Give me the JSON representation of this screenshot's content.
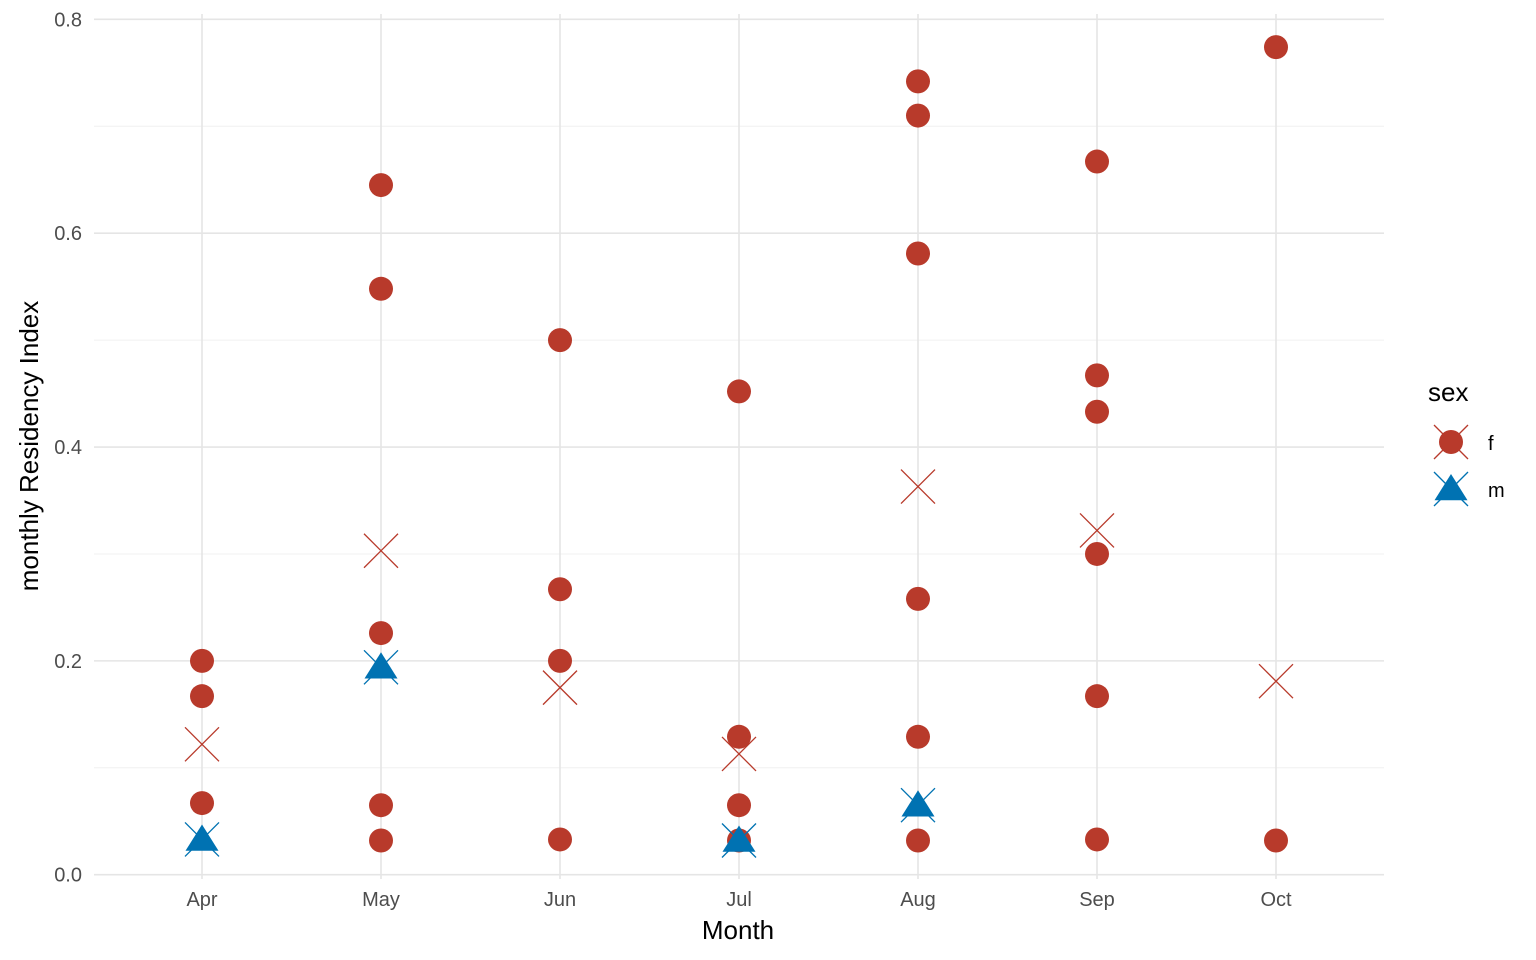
{
  "chart_data": {
    "type": "scatter",
    "xlabel": "Month",
    "ylabel": "monthly Residency Index",
    "categories": [
      "Apr",
      "May",
      "Jun",
      "Jul",
      "Aug",
      "Sep",
      "Oct"
    ],
    "ylim": [
      -0.004,
      0.805
    ],
    "yticks": [
      0.0,
      0.2,
      0.4,
      0.6,
      0.8
    ],
    "ytick_labels": [
      "0.0",
      "0.2",
      "0.4",
      "0.6",
      "0.8"
    ],
    "grid": true,
    "legend": {
      "title": "sex",
      "placement": "right",
      "items": [
        {
          "label": "f",
          "color": "#B83A2B",
          "shape": "circle"
        },
        {
          "label": "m",
          "color": "#0072B2",
          "shape": "triangle"
        }
      ]
    },
    "series": [
      {
        "name": "f",
        "marker": "circle",
        "color": "#B83A2B",
        "points": [
          {
            "x": "Apr",
            "y": 0.2
          },
          {
            "x": "Apr",
            "y": 0.167
          },
          {
            "x": "Apr",
            "y": 0.067
          },
          {
            "x": "May",
            "y": 0.645
          },
          {
            "x": "May",
            "y": 0.548
          },
          {
            "x": "May",
            "y": 0.226
          },
          {
            "x": "May",
            "y": 0.065
          },
          {
            "x": "May",
            "y": 0.032
          },
          {
            "x": "Jun",
            "y": 0.5
          },
          {
            "x": "Jun",
            "y": 0.267
          },
          {
            "x": "Jun",
            "y": 0.2
          },
          {
            "x": "Jun",
            "y": 0.033
          },
          {
            "x": "Jul",
            "y": 0.452
          },
          {
            "x": "Jul",
            "y": 0.129
          },
          {
            "x": "Jul",
            "y": 0.065
          },
          {
            "x": "Jul",
            "y": 0.032
          },
          {
            "x": "Aug",
            "y": 0.742
          },
          {
            "x": "Aug",
            "y": 0.71
          },
          {
            "x": "Aug",
            "y": 0.581
          },
          {
            "x": "Aug",
            "y": 0.258
          },
          {
            "x": "Aug",
            "y": 0.129
          },
          {
            "x": "Aug",
            "y": 0.032
          },
          {
            "x": "Sep",
            "y": 0.667
          },
          {
            "x": "Sep",
            "y": 0.467
          },
          {
            "x": "Sep",
            "y": 0.433
          },
          {
            "x": "Sep",
            "y": 0.3
          },
          {
            "x": "Sep",
            "y": 0.167
          },
          {
            "x": "Sep",
            "y": 0.033
          },
          {
            "x": "Oct",
            "y": 0.774
          },
          {
            "x": "Oct",
            "y": 0.032
          }
        ]
      },
      {
        "name": "m",
        "marker": "triangle",
        "color": "#0072B2",
        "points": [
          {
            "x": "Apr",
            "y": 0.033
          },
          {
            "x": "May",
            "y": 0.194
          },
          {
            "x": "Jul",
            "y": 0.032
          },
          {
            "x": "Aug",
            "y": 0.065
          }
        ]
      },
      {
        "name": "f",
        "marker": "cross",
        "color": "#B83A2B",
        "points": [
          {
            "x": "Apr",
            "y": 0.122
          },
          {
            "x": "May",
            "y": 0.303
          },
          {
            "x": "Jun",
            "y": 0.175
          },
          {
            "x": "Jul",
            "y": 0.113
          },
          {
            "x": "Aug",
            "y": 0.363
          },
          {
            "x": "Sep",
            "y": 0.322
          },
          {
            "x": "Oct",
            "y": 0.181
          }
        ]
      },
      {
        "name": "m",
        "marker": "cross",
        "color": "#0072B2",
        "points": [
          {
            "x": "Apr",
            "y": 0.033
          },
          {
            "x": "May",
            "y": 0.194
          },
          {
            "x": "Jul",
            "y": 0.032
          },
          {
            "x": "Aug",
            "y": 0.065
          }
        ]
      }
    ]
  }
}
